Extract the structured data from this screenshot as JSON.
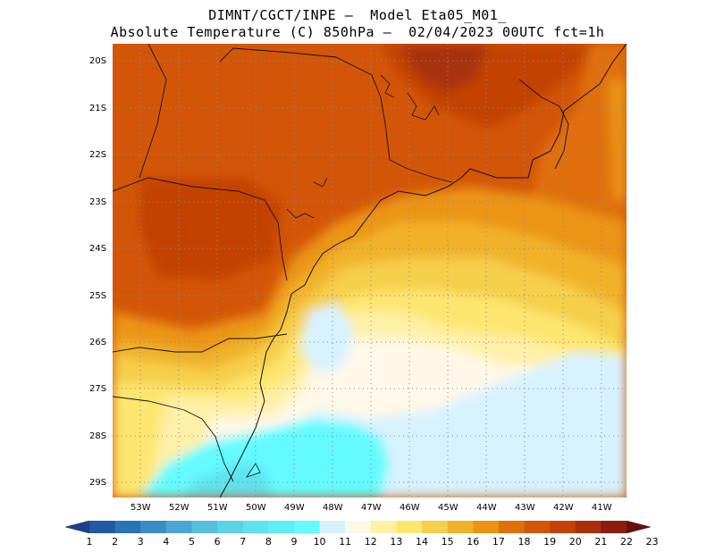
{
  "title": {
    "line1": "DIMNT/CGCT/INPE –  Model Eta05_M01_",
    "line2": "Absolute Temperature (C) 850hPa –  02/04/2023 00UTC fct=1h"
  },
  "map": {
    "lat_range": [
      -29.4,
      -19.8
    ],
    "lon_range": [
      -53.8,
      -40.4
    ],
    "lat_labels": [
      "20S",
      "21S",
      "22S",
      "23S",
      "24S",
      "25S",
      "26S",
      "27S",
      "28S",
      "29S"
    ],
    "lon_labels": [
      "53W",
      "52W",
      "51W",
      "50W",
      "49W",
      "48W",
      "47W",
      "46W",
      "45W",
      "44W",
      "43W",
      "42W",
      "41W"
    ]
  },
  "colorbar": {
    "labels": [
      "1",
      "2",
      "3",
      "4",
      "5",
      "6",
      "7",
      "8",
      "9",
      "10",
      "11",
      "12",
      "13",
      "14",
      "15",
      "16",
      "17",
      "18",
      "19",
      "20",
      "21",
      "22",
      "23"
    ],
    "colors": [
      "#1b3f8f",
      "#1f5aa3",
      "#2a74b5",
      "#3b8dc5",
      "#4aa6d2",
      "#55bedc",
      "#5cd2e6",
      "#5fe2ef",
      "#5ff0f5",
      "#63fbff",
      "#d7f2ff",
      "#fff8e8",
      "#fff0a8",
      "#fde66f",
      "#f6cf4c",
      "#f1b22a",
      "#eb9412",
      "#e0700a",
      "#d35608",
      "#c34306",
      "#a8300a",
      "#8c1c0e",
      "#6b0c12"
    ]
  }
}
